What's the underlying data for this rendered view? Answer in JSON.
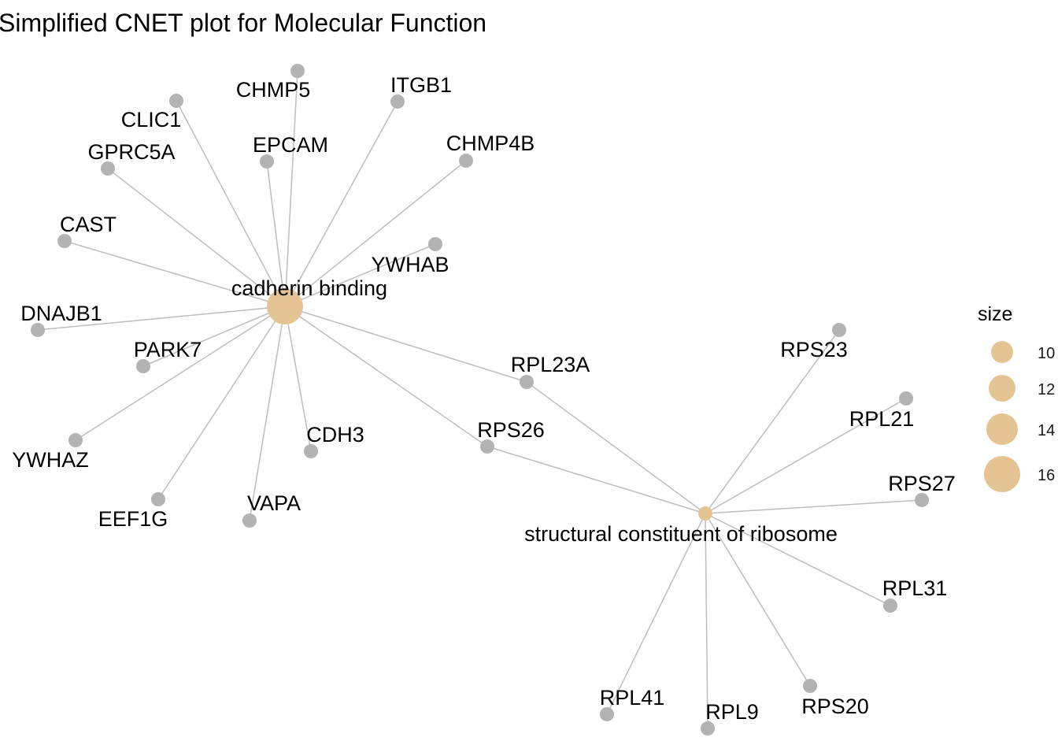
{
  "title": "Simplified CNET plot for Molecular Function",
  "colors": {
    "category_node": "#e5c494",
    "gene_node": "#b3b3b3",
    "edge": "#bebebe"
  },
  "categories": [
    {
      "id": "cadherin",
      "label": "cadherin binding",
      "size": 17
    },
    {
      "id": "ribosome",
      "label": "structural constituent of ribosome",
      "size": 10
    }
  ],
  "genes": [
    {
      "id": "CHMP5",
      "label": "CHMP5",
      "categories": [
        "cadherin"
      ]
    },
    {
      "id": "ITGB1",
      "label": "ITGB1",
      "categories": [
        "cadherin"
      ]
    },
    {
      "id": "CLIC1",
      "label": "CLIC1",
      "categories": [
        "cadherin"
      ]
    },
    {
      "id": "EPCAM",
      "label": "EPCAM",
      "categories": [
        "cadherin"
      ]
    },
    {
      "id": "CHMP4B",
      "label": "CHMP4B",
      "categories": [
        "cadherin"
      ]
    },
    {
      "id": "GPRC5A",
      "label": "GPRC5A",
      "categories": [
        "cadherin"
      ]
    },
    {
      "id": "CAST",
      "label": "CAST",
      "categories": [
        "cadherin"
      ]
    },
    {
      "id": "YWHAB",
      "label": "YWHAB",
      "categories": [
        "cadherin"
      ]
    },
    {
      "id": "DNAJB1",
      "label": "DNAJB1",
      "categories": [
        "cadherin"
      ]
    },
    {
      "id": "PARK7",
      "label": "PARK7",
      "categories": [
        "cadherin"
      ]
    },
    {
      "id": "RPL23A",
      "label": "RPL23A",
      "categories": [
        "cadherin",
        "ribosome"
      ]
    },
    {
      "id": "RPS26",
      "label": "RPS26",
      "categories": [
        "cadherin",
        "ribosome"
      ]
    },
    {
      "id": "CDH3",
      "label": "CDH3",
      "categories": [
        "cadherin"
      ]
    },
    {
      "id": "YWHAZ",
      "label": "YWHAZ",
      "categories": [
        "cadherin"
      ]
    },
    {
      "id": "EEF1G",
      "label": "EEF1G",
      "categories": [
        "cadherin"
      ]
    },
    {
      "id": "VAPA",
      "label": "VAPA",
      "categories": [
        "cadherin"
      ]
    },
    {
      "id": "RPS23",
      "label": "RPS23",
      "categories": [
        "ribosome"
      ]
    },
    {
      "id": "RPL21",
      "label": "RPL21",
      "categories": [
        "ribosome"
      ]
    },
    {
      "id": "RPS27",
      "label": "RPS27",
      "categories": [
        "ribosome"
      ]
    },
    {
      "id": "RPL31",
      "label": "RPL31",
      "categories": [
        "ribosome"
      ]
    },
    {
      "id": "RPL41",
      "label": "RPL41",
      "categories": [
        "ribosome"
      ]
    },
    {
      "id": "RPL9",
      "label": "RPL9",
      "categories": [
        "ribosome"
      ]
    },
    {
      "id": "RPS20",
      "label": "RPS20",
      "categories": [
        "ribosome"
      ]
    }
  ],
  "legend": {
    "title": "size",
    "entries": [
      {
        "label": "10",
        "value": 10
      },
      {
        "label": "12",
        "value": 12
      },
      {
        "label": "14",
        "value": 14
      },
      {
        "label": "16",
        "value": 16
      }
    ]
  }
}
